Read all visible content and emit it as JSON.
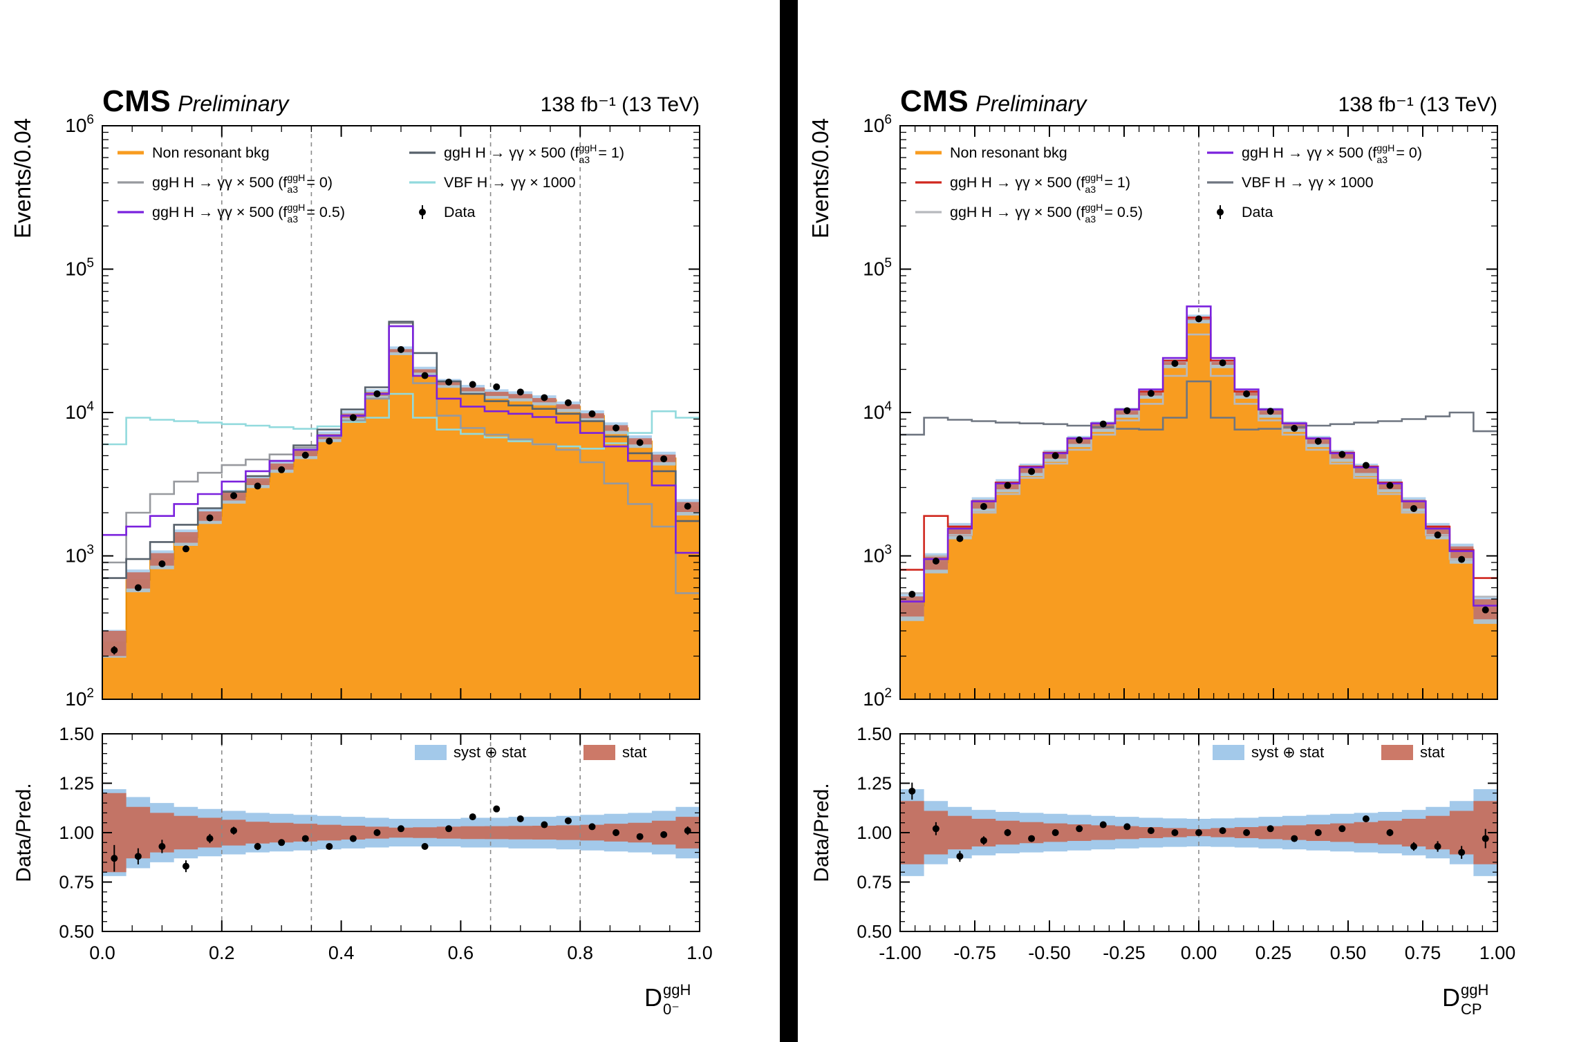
{
  "header": {
    "cms": "CMS",
    "preliminary": "Preliminary",
    "lumi": "138 fb⁻¹ (13 TeV)"
  },
  "colors": {
    "orange": "#f89c20",
    "orange_edge": "#e78a00",
    "gray_left": "#97999e",
    "purple": "#7a21dd",
    "darkslate": "#57616b",
    "cyan": "#92dadd",
    "red": "#d0271e",
    "lightgray": "#b7b9bd",
    "darkgray": "#6e7580",
    "syst": "#a3c9ea",
    "stat": "#c76a58",
    "data": "#000000",
    "dashed": "#8a8a8a"
  },
  "chart_data": [
    {
      "key": "d0minus",
      "type": "bar",
      "subtype": "stacked-histogram-log-with-ratio",
      "ylabel": "Events/0.04",
      "ratio_ylabel": "Data/Pred.",
      "xlabel": {
        "base": "D",
        "sup": "ggH",
        "sub": "0⁻"
      },
      "xlim": [
        0,
        1
      ],
      "ylog_exp": [
        2,
        6
      ],
      "y_tick_exps": [
        2,
        3,
        4,
        5,
        6
      ],
      "ratio_ylim": [
        0.5,
        1.5
      ],
      "ratio_ticks": [
        "0.50",
        "0.75",
        "1.00",
        "1.25",
        "1.50"
      ],
      "ratio_minor": 0.05,
      "x_minor": 0.05,
      "x_ticks": [
        {
          "v": 0.0,
          "l": "0.0"
        },
        {
          "v": 0.2,
          "l": "0.2"
        },
        {
          "v": 0.4,
          "l": "0.4"
        },
        {
          "v": 0.6,
          "l": "0.6"
        },
        {
          "v": 0.8,
          "l": "0.8"
        },
        {
          "v": 1.0,
          "l": "1.0"
        }
      ],
      "dashed": [
        0.2,
        0.35,
        0.65,
        0.8
      ],
      "bins": {
        "start": 0,
        "width": 0.04,
        "n": 25
      },
      "bkg": {
        "key": "bkg",
        "label": [
          {
            "t": "Non resonant bkg"
          }
        ],
        "color": "orange",
        "values": [
          250,
          680,
          950,
          1350,
          1900,
          2600,
          3300,
          4200,
          5200,
          6800,
          9500,
          13500,
          27000,
          19500,
          16000,
          14500,
          13500,
          13000,
          12200,
          11000,
          9500,
          7800,
          6300,
          4800,
          2200
        ]
      },
      "signals": [
        {
          "key": "vbf",
          "label": [
            {
              "t": "VBF H → γγ × 1000"
            }
          ],
          "color": "cyan",
          "values": [
            6000,
            9200,
            8900,
            8700,
            8500,
            8300,
            8100,
            7900,
            7700,
            8000,
            8600,
            9200,
            13500,
            9200,
            7600,
            7100,
            6700,
            6300,
            6000,
            5800,
            5600,
            6100,
            7200,
            10200,
            9200
          ]
        },
        {
          "key": "fa3_0",
          "label": [
            {
              "t": "ggH H → γγ × 500 (f"
            },
            {
              "sup": "ggH",
              "sub": "a3"
            },
            {
              "t": " = 0)"
            }
          ],
          "color": "gray_left",
          "values": [
            900,
            2000,
            2700,
            3300,
            3800,
            4300,
            4700,
            5100,
            5700,
            6800,
            8800,
            12500,
            42000,
            16000,
            9500,
            7800,
            7000,
            6500,
            6000,
            5500,
            4500,
            3200,
            2300,
            1600,
            550
          ]
        },
        {
          "key": "fa3_1",
          "label": [
            {
              "t": "ggH H → γγ × 500 (f"
            },
            {
              "sup": "ggH",
              "sub": "a3"
            },
            {
              "t": " = 1)"
            }
          ],
          "color": "darkslate",
          "values": [
            700,
            950,
            1250,
            1650,
            2150,
            2800,
            3600,
            4600,
            5900,
            7600,
            10500,
            15000,
            43000,
            26000,
            16500,
            13500,
            12000,
            11200,
            10600,
            9800,
            8700,
            6800,
            5200,
            3900,
            1750
          ]
        },
        {
          "key": "fa3_05",
          "label": [
            {
              "t": "ggH H → γγ × 500 (f"
            },
            {
              "sup": "ggH",
              "sub": "a3"
            },
            {
              "t": " = 0.5)"
            }
          ],
          "color": "purple",
          "values": [
            1400,
            1600,
            1900,
            2300,
            2700,
            3300,
            3900,
            4600,
            5500,
            6900,
            9500,
            13500,
            40000,
            18000,
            12500,
            11000,
            10200,
            9800,
            9300,
            8500,
            7200,
            5800,
            4600,
            3100,
            1050
          ]
        }
      ],
      "data": {
        "key": "data",
        "label": [
          {
            "t": "Data"
          }
        ],
        "values": [
          220,
          600,
          880,
          1120,
          1840,
          2630,
          3070,
          3990,
          5040,
          6320,
          9220,
          13500,
          27500,
          18100,
          16300,
          15700,
          15100,
          13900,
          12700,
          11700,
          9790,
          7800,
          6170,
          4750,
          2220
        ]
      },
      "legend": {
        "col1": [
          "bkg",
          "fa3_0",
          "fa3_05"
        ],
        "col2": [
          "fa3_1",
          "vbf",
          "data"
        ]
      },
      "ratio": {
        "values": [
          0.87,
          0.88,
          0.93,
          0.83,
          0.97,
          1.01,
          0.93,
          0.95,
          0.97,
          0.93,
          0.97,
          1.0,
          1.02,
          0.93,
          1.02,
          1.08,
          1.12,
          1.07,
          1.04,
          1.06,
          1.03,
          1.0,
          0.98,
          0.99,
          1.01
        ],
        "syst": [
          0.22,
          0.18,
          0.15,
          0.13,
          0.12,
          0.11,
          0.1,
          0.095,
          0.09,
          0.085,
          0.08,
          0.075,
          0.07,
          0.07,
          0.07,
          0.075,
          0.075,
          0.08,
          0.08,
          0.085,
          0.09,
          0.095,
          0.1,
          0.11,
          0.13
        ],
        "stat": [
          0.2,
          0.13,
          0.1,
          0.085,
          0.075,
          0.065,
          0.055,
          0.05,
          0.045,
          0.04,
          0.035,
          0.03,
          0.025,
          0.027,
          0.03,
          0.032,
          0.033,
          0.034,
          0.035,
          0.037,
          0.04,
          0.045,
          0.05,
          0.06,
          0.08
        ],
        "legend_syst": "syst ⊕ stat",
        "legend_stat": "stat"
      }
    },
    {
      "key": "dcp",
      "type": "bar",
      "subtype": "stacked-histogram-log-with-ratio",
      "ylabel": "Events/0.04",
      "ratio_ylabel": "Data/Pred.",
      "xlabel": {
        "base": "D",
        "sup": "ggH",
        "sub": "CP"
      },
      "xlim": [
        -1,
        1
      ],
      "ylog_exp": [
        2,
        6
      ],
      "y_tick_exps": [
        2,
        3,
        4,
        5,
        6
      ],
      "ratio_ylim": [
        0.5,
        1.5
      ],
      "ratio_ticks": [
        "0.50",
        "0.75",
        "1.00",
        "1.25",
        "1.50"
      ],
      "ratio_minor": 0.05,
      "x_minor": 0.05,
      "x_ticks": [
        {
          "v": -1.0,
          "l": "-1.00"
        },
        {
          "v": -0.75,
          "l": "-0.75"
        },
        {
          "v": -0.5,
          "l": "-0.50"
        },
        {
          "v": -0.25,
          "l": "-0.25"
        },
        {
          "v": 0.0,
          "l": "0.00"
        },
        {
          "v": 0.25,
          "l": "0.25"
        },
        {
          "v": 0.5,
          "l": "0.50"
        },
        {
          "v": 0.75,
          "l": "0.75"
        },
        {
          "v": 1.0,
          "l": "1.00"
        }
      ],
      "dashed": [
        0.0
      ],
      "bins": {
        "start": -1,
        "width": 0.08,
        "n": 25
      },
      "bkg": {
        "key": "bkg",
        "label": [
          {
            "t": "Non resonant bkg"
          }
        ],
        "color": "orange",
        "values": [
          450,
          900,
          1500,
          2300,
          3100,
          4000,
          5000,
          6300,
          8000,
          10000,
          13500,
          22000,
          45000,
          22000,
          13500,
          10000,
          8000,
          6300,
          5000,
          4000,
          3100,
          2300,
          1500,
          1050,
          430
        ]
      },
      "signals": [
        {
          "key": "vbf",
          "label": [
            {
              "t": "VBF H → γγ × 1000"
            }
          ],
          "color": "darkgray",
          "values": [
            7000,
            9200,
            8900,
            8700,
            8500,
            8400,
            8300,
            8100,
            7900,
            7700,
            7600,
            9200,
            16500,
            9200,
            7600,
            7700,
            7900,
            8100,
            8300,
            8500,
            8700,
            9000,
            9400,
            10000,
            7400
          ]
        },
        {
          "key": "fa3_05",
          "label": [
            {
              "t": "ggH H → γγ × 500 (f"
            },
            {
              "sup": "ggH",
              "sub": "a3"
            },
            {
              "t": " = 0.5)"
            }
          ],
          "color": "lightgray",
          "values": [
            550,
            1000,
            1400,
            2000,
            2700,
            3500,
            4400,
            5500,
            7000,
            8800,
            11500,
            18000,
            35000,
            18000,
            11500,
            8800,
            7000,
            5500,
            4400,
            3500,
            2700,
            2000,
            1400,
            950,
            520
          ]
        },
        {
          "key": "fa3_1",
          "label": [
            {
              "t": "ggH H → γγ × 500 (f"
            },
            {
              "sup": "ggH",
              "sub": "a3"
            },
            {
              "t": " = 1)"
            }
          ],
          "color": "red",
          "values": [
            800,
            1900,
            1600,
            2400,
            3250,
            4200,
            5250,
            6600,
            8400,
            10500,
            14000,
            23000,
            46000,
            23000,
            14000,
            10500,
            8400,
            6600,
            5250,
            4200,
            3250,
            2400,
            1600,
            1100,
            700
          ]
        },
        {
          "key": "fa3_0",
          "label": [
            {
              "t": "ggH H → γγ × 500 (f"
            },
            {
              "sup": "ggH",
              "sub": "a3"
            },
            {
              "t": " = 0)"
            }
          ],
          "color": "purple",
          "values": [
            480,
            950,
            1550,
            2400,
            3200,
            4150,
            5200,
            6600,
            8400,
            10500,
            14500,
            24000,
            55000,
            24000,
            14500,
            10500,
            8400,
            6600,
            5200,
            4150,
            3200,
            2400,
            1550,
            1080,
            450
          ]
        }
      ],
      "data": {
        "key": "data",
        "label": [
          {
            "t": "Data"
          }
        ],
        "values": [
          540,
          920,
          1320,
          2210,
          3100,
          3880,
          5000,
          6430,
          8320,
          10300,
          13600,
          22000,
          45000,
          22200,
          13500,
          10200,
          7760,
          6300,
          5100,
          4280,
          3100,
          2140,
          1400,
          945,
          420
        ]
      },
      "legend": {
        "col1": [
          "bkg",
          "fa3_1",
          "fa3_05"
        ],
        "col2": [
          "fa3_0",
          "vbf",
          "data"
        ]
      },
      "ratio": {
        "values": [
          1.21,
          1.02,
          0.88,
          0.96,
          1.0,
          0.97,
          1.0,
          1.02,
          1.04,
          1.03,
          1.01,
          1.0,
          1.0,
          1.01,
          1.0,
          1.02,
          0.97,
          1.0,
          1.02,
          1.07,
          1.0,
          0.93,
          0.93,
          0.9,
          0.97
        ],
        "syst": [
          0.22,
          0.16,
          0.13,
          0.115,
          0.105,
          0.1,
          0.095,
          0.09,
          0.085,
          0.08,
          0.075,
          0.072,
          0.07,
          0.072,
          0.075,
          0.08,
          0.085,
          0.09,
          0.095,
          0.1,
          0.105,
          0.115,
          0.13,
          0.16,
          0.22
        ],
        "stat": [
          0.16,
          0.11,
          0.085,
          0.07,
          0.06,
          0.053,
          0.047,
          0.042,
          0.037,
          0.033,
          0.028,
          0.023,
          0.018,
          0.023,
          0.028,
          0.033,
          0.037,
          0.042,
          0.047,
          0.053,
          0.06,
          0.07,
          0.085,
          0.11,
          0.16
        ],
        "legend_syst": "syst ⊕ stat",
        "legend_stat": "stat"
      }
    }
  ]
}
